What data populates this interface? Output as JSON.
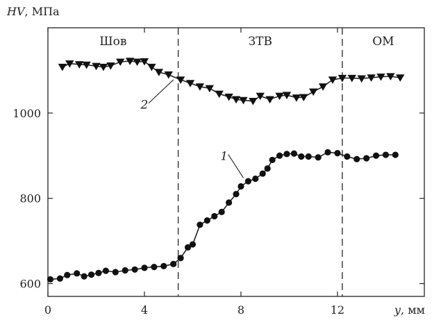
{
  "chart_data": {
    "type": "line",
    "xlabel": {
      "var": "y",
      "unit": ", мм"
    },
    "ylabel": {
      "var": "HV",
      "unit": ", МПа"
    },
    "xlim": [
      0,
      15.6
    ],
    "ylim": [
      570,
      1200
    ],
    "xticks": [
      0,
      4,
      8,
      12
    ],
    "yticks": [
      600,
      800,
      1000
    ],
    "grid": false,
    "regions": [
      {
        "label": "Шов",
        "x_center": 2.7
      },
      {
        "label": "ЗТВ",
        "x_center": 8.8
      },
      {
        "label": "ОМ",
        "x_center": 13.9
      }
    ],
    "dividers": [
      5.4,
      12.2
    ],
    "series": [
      {
        "label": "1",
        "marker": "circle",
        "x": [
          0.1,
          0.5,
          0.8,
          1.2,
          1.5,
          1.8,
          2.1,
          2.4,
          2.8,
          3.2,
          3.6,
          4.0,
          4.4,
          4.8,
          5.2,
          5.5,
          5.8,
          6.0,
          6.3,
          6.6,
          6.9,
          7.2,
          7.5,
          7.8,
          8.0,
          8.3,
          8.6,
          8.9,
          9.1,
          9.3,
          9.6,
          9.9,
          10.2,
          10.5,
          10.8,
          11.2,
          11.6,
          12.0,
          12.4,
          12.8,
          13.2,
          13.6,
          14.0,
          14.4
        ],
        "y": [
          610,
          612,
          620,
          624,
          617,
          621,
          625,
          630,
          627,
          631,
          633,
          637,
          639,
          641,
          646,
          660,
          685,
          692,
          738,
          748,
          758,
          768,
          790,
          810,
          828,
          840,
          846,
          858,
          870,
          890,
          900,
          904,
          905,
          898,
          898,
          896,
          908,
          906,
          898,
          892,
          894,
          900,
          902,
          902
        ]
      },
      {
        "label": "2",
        "marker": "triangle-down",
        "x": [
          0.6,
          0.9,
          1.3,
          1.6,
          2.0,
          2.3,
          2.6,
          3.0,
          3.4,
          3.7,
          4.0,
          4.3,
          4.6,
          5.0,
          5.5,
          5.9,
          6.3,
          6.7,
          7.1,
          7.5,
          7.8,
          8.1,
          8.5,
          8.8,
          9.2,
          9.6,
          9.9,
          10.3,
          10.6,
          11.0,
          11.4,
          11.8,
          12.2,
          12.6,
          13.0,
          13.4,
          13.8,
          14.2,
          14.6
        ],
        "y": [
          1108,
          1116,
          1114,
          1113,
          1110,
          1108,
          1111,
          1120,
          1122,
          1120,
          1121,
          1108,
          1096,
          1090,
          1078,
          1070,
          1062,
          1058,
          1045,
          1038,
          1032,
          1030,
          1028,
          1040,
          1032,
          1040,
          1042,
          1036,
          1037,
          1050,
          1062,
          1078,
          1082,
          1082,
          1081,
          1083,
          1085,
          1086,
          1083
        ]
      }
    ],
    "series_label_points": {
      "1": {
        "text_x": 7.3,
        "text_y": 890,
        "to_x": 8.1,
        "to_y": 848
      },
      "2": {
        "text_x": 4.0,
        "text_y": 1010,
        "to_x": 5.2,
        "to_y": 1078
      }
    }
  }
}
